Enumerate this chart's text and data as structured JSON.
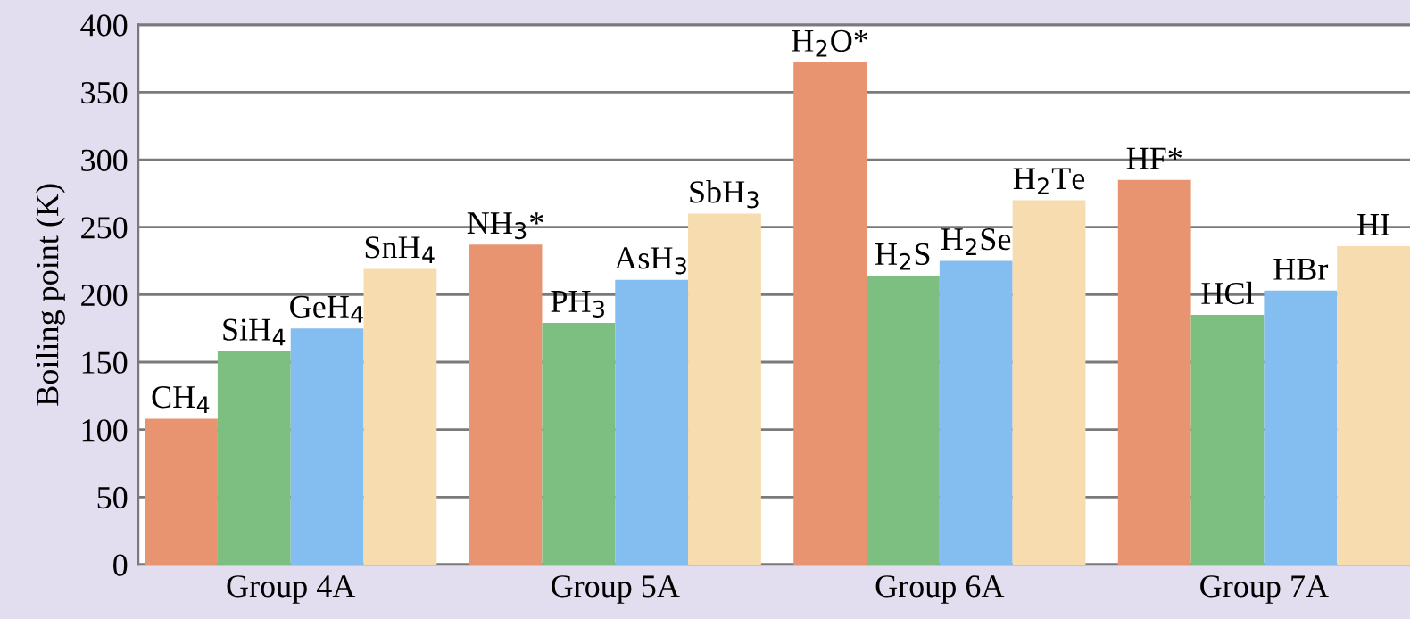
{
  "chart_data": {
    "type": "bar",
    "ylabel": "Boiling point (K)",
    "categories": [
      "Group 4A",
      "Group 5A",
      "Group 6A",
      "Group 7A"
    ],
    "series": [
      {
        "color": "#e89470",
        "values": [
          108,
          237,
          372,
          285
        ]
      },
      {
        "color": "#7cbf80",
        "values": [
          158,
          179,
          214,
          185
        ]
      },
      {
        "color": "#84bdf0",
        "values": [
          175,
          211,
          225,
          203
        ]
      },
      {
        "color": "#f6dcae",
        "values": [
          219,
          260,
          270,
          236
        ]
      }
    ],
    "annotations": [
      "CH$_{4}$",
      "SiH$_{4}$",
      "GeH$_{4}$",
      "SnH$_{4}$",
      "NH$_{3}$*",
      "PH$_{3}$",
      "AsH$_{3}$",
      "SbH$_{3}$",
      "H$_{2}$O*",
      "H$_{2}$S",
      "H$_{2}$Se",
      "H$_{2}$Te",
      "HF*",
      "HCl",
      "HBr",
      "HI"
    ],
    "ylim": [
      0,
      400
    ],
    "yticks": [
      0,
      50,
      100,
      150,
      200,
      250,
      300,
      350,
      400
    ],
    "grid": "y"
  }
}
